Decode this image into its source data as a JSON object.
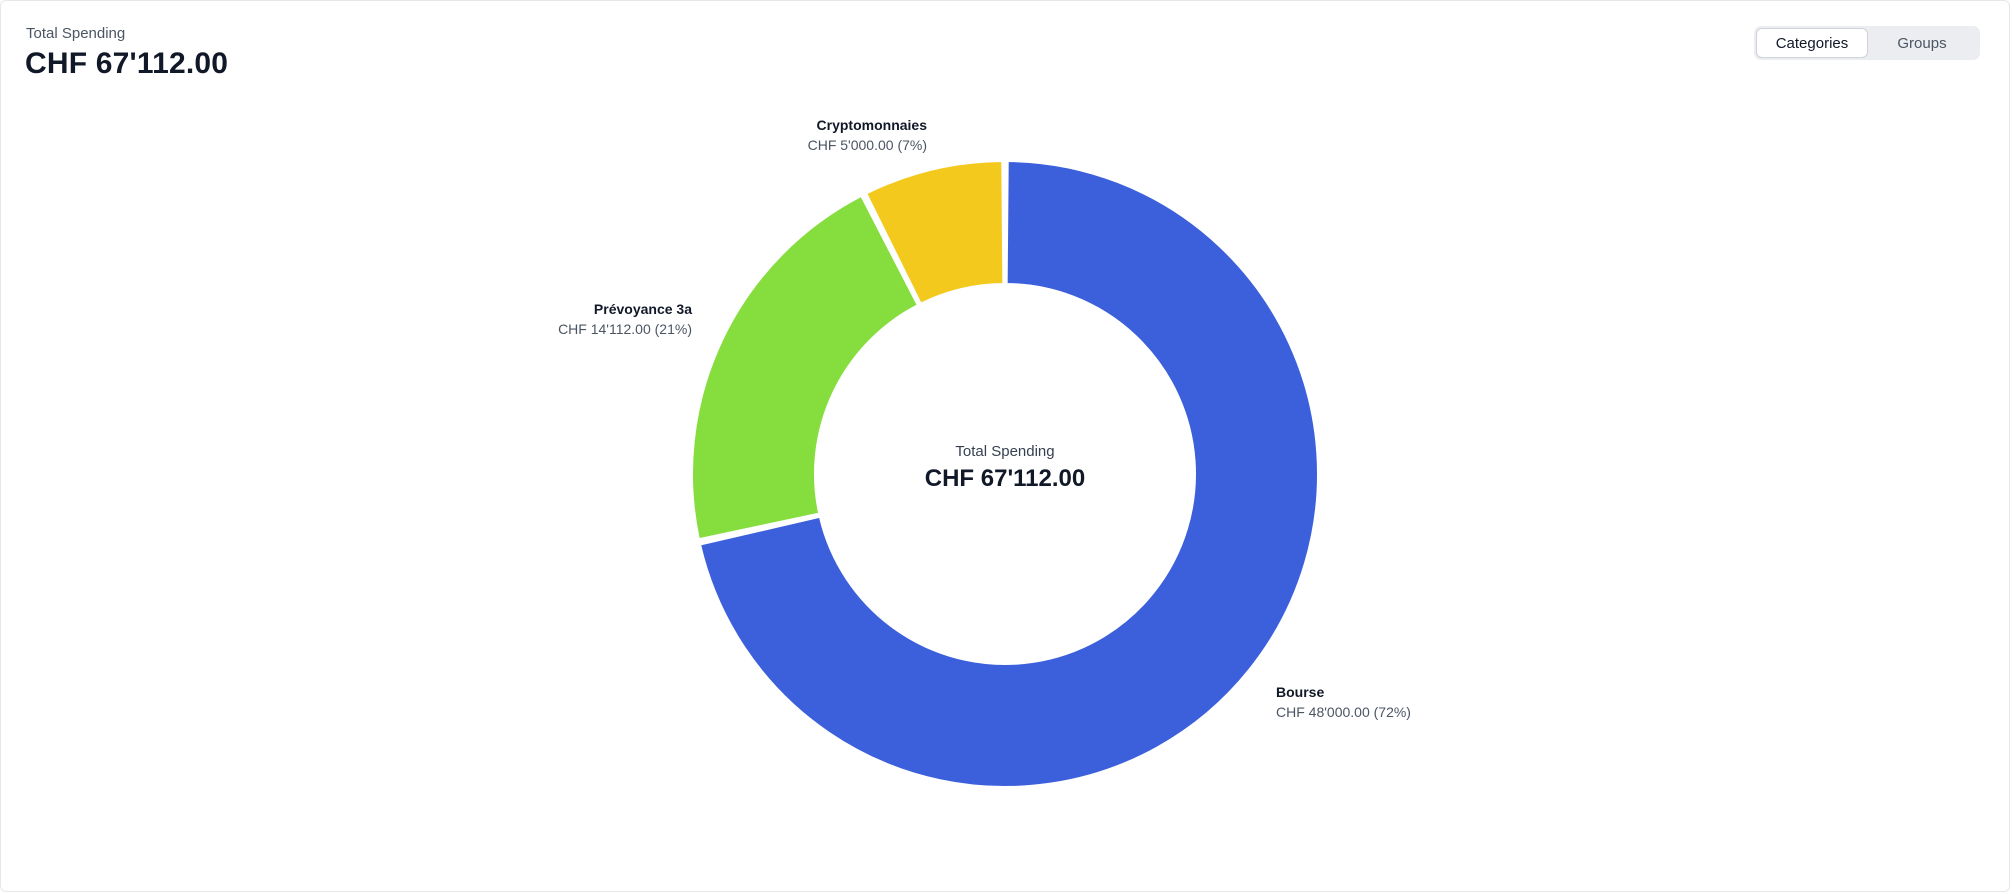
{
  "header": {
    "label": "Total Spending",
    "value": "CHF 67'112.00"
  },
  "toggle": {
    "options": [
      "Categories",
      "Groups"
    ],
    "selected": "Categories"
  },
  "center": {
    "label": "Total Spending",
    "value": "CHF 67'112.00"
  },
  "chart_data": {
    "type": "pie",
    "variant": "donut",
    "categories": [
      "Bourse",
      "Prévoyance 3a",
      "Cryptomonnaies"
    ],
    "values": [
      48000,
      14112,
      5000
    ],
    "value_labels": [
      "CHF 48'000.00 (72%)",
      "CHF 14'112.00 (21%)",
      "CHF 5'000.00 (7%)"
    ],
    "colors": [
      "#3c5fdc",
      "#86dd3e",
      "#f4c91e"
    ],
    "legend": "none"
  }
}
